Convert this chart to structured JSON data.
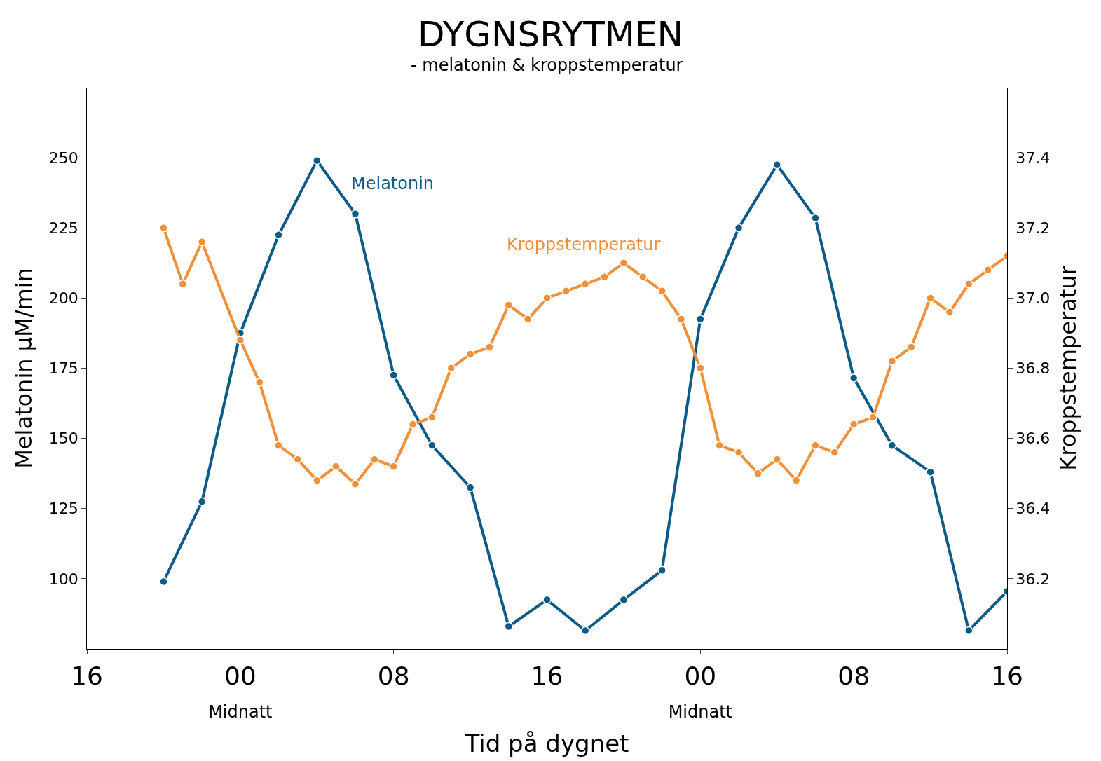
{
  "chart_data": {
    "type": "line",
    "title": "DYGNSRYTMEN",
    "subtitle": "- melatonin & kroppstemperatur",
    "xlabel": "Tid på dygnet",
    "ylabel": "Melatonin μM/min",
    "y2label": "Kroppstemperatur",
    "categories": [
      "16",
      null,
      null,
      null,
      null,
      null,
      null,
      null,
      "00\nMidnatt",
      null,
      null,
      null,
      null,
      null,
      null,
      null,
      "08",
      null,
      null,
      null,
      null,
      null,
      null,
      null,
      "16",
      null,
      null,
      null,
      null,
      null,
      null,
      null,
      "00\nMidnatt",
      null,
      null,
      null,
      null,
      null,
      null,
      null,
      "08",
      null,
      null,
      null,
      null,
      null,
      null,
      null,
      "16"
    ],
    "ylim": [
      75,
      275
    ],
    "yticks": [
      100,
      125,
      150,
      175,
      200,
      225,
      250
    ],
    "y2lim": [
      36.0,
      37.6
    ],
    "y2ticks": [
      {
        "value": 36.2,
        "label": "36.2"
      },
      {
        "value": 36.4,
        "label": "36.4"
      },
      {
        "value": 36.6,
        "label": "36.6"
      },
      {
        "value": 36.8,
        "label": "36.8"
      },
      {
        "value": 37.0,
        "label": "37.0"
      },
      {
        "value": 37.2,
        "label": "37.2"
      },
      {
        "value": 37.4,
        "label": "37.4"
      }
    ],
    "marker": "circle",
    "line_style": "solid",
    "series": [
      {
        "name": "Melatonin",
        "color": "#0b5a88",
        "values": [
          null,
          null,
          null,
          null,
          99,
          null,
          127.5,
          null,
          187.5,
          null,
          222.5,
          null,
          249,
          null,
          230,
          null,
          172.5,
          null,
          147.5,
          null,
          132.5,
          null,
          83,
          null,
          92.5,
          null,
          81.5,
          null,
          92.5,
          null,
          103,
          null,
          192.5,
          null,
          225,
          null,
          247.5,
          null,
          228.5,
          null,
          171.5,
          null,
          147.5,
          null,
          138,
          null,
          81.5,
          null,
          95.5
        ]
      },
      {
        "name": "Kroppstemperatur",
        "color": "#f0903a",
        "axis": "y2",
        "values": [
          null,
          null,
          null,
          null,
          37.2,
          37.04,
          37.16,
          null,
          36.88,
          36.76,
          36.58,
          36.54,
          36.48,
          36.52,
          36.47,
          36.54,
          36.52,
          36.64,
          36.66,
          36.8,
          36.84,
          36.86,
          36.98,
          36.94,
          37.0,
          37.02,
          37.04,
          37.06,
          37.1,
          37.06,
          37.02,
          36.94,
          36.8,
          36.58,
          36.56,
          36.5,
          36.54,
          36.48,
          36.58,
          36.56,
          36.64,
          36.66,
          36.82,
          36.86,
          37.0,
          36.96,
          37.04,
          37.08,
          37.12
        ]
      }
    ]
  }
}
